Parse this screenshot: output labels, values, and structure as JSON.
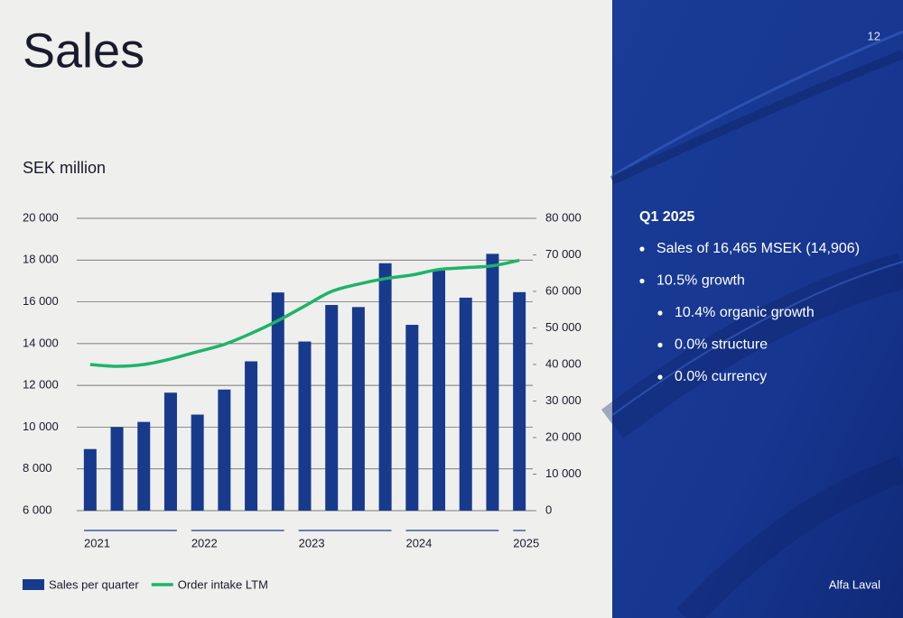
{
  "chart_data": {
    "type": "bar",
    "title": "Sales",
    "ylabel": "SEK million",
    "categories": [
      "2021",
      null,
      null,
      null,
      "2022",
      null,
      null,
      null,
      "2023",
      null,
      null,
      null,
      "2024",
      null,
      null,
      null,
      "2025"
    ],
    "series": [
      {
        "name": "Sales per quarter",
        "type": "bar",
        "color": "#173a8c",
        "values": [
          8950,
          10000,
          10250,
          11650,
          10600,
          11800,
          13150,
          16450,
          14100,
          15850,
          15750,
          17850,
          14900,
          17500,
          16200,
          18300,
          16465
        ]
      },
      {
        "name": "Order intake LTM",
        "type": "line",
        "axis": "y2",
        "color": "#1db46a",
        "values": [
          40000,
          39500,
          40000,
          41500,
          43500,
          45500,
          48500,
          52000,
          56000,
          60000,
          62000,
          63500,
          64500,
          66000,
          66500,
          67000,
          68500
        ]
      }
    ],
    "ylim": [
      6000,
      20000
    ],
    "yticks": [
      {
        "value": 6000,
        "label": "6 000"
      },
      {
        "value": 8000,
        "label": "8 000"
      },
      {
        "value": 10000,
        "label": "10 000"
      },
      {
        "value": 12000,
        "label": "12 000"
      },
      {
        "value": 14000,
        "label": "14 000"
      },
      {
        "value": 16000,
        "label": "16 000"
      },
      {
        "value": 18000,
        "label": "18 000"
      },
      {
        "value": 20000,
        "label": "20 000"
      }
    ],
    "y2lim": [
      0,
      80000
    ],
    "y2ticks": [
      0,
      {
        "value": 10000,
        "label": "10 000"
      },
      {
        "value": 20000,
        "label": "20 000"
      },
      {
        "value": 30000,
        "label": "30 000"
      },
      {
        "value": 40000,
        "label": "40 000"
      },
      {
        "value": 50000,
        "label": "50 000"
      },
      {
        "value": 60000,
        "label": "60 000"
      },
      {
        "value": 70000,
        "label": "70 000"
      },
      {
        "value": 80000,
        "label": "80 000"
      }
    ],
    "grid": true,
    "legend": "bottom-left"
  },
  "slide": {
    "page_number": "12",
    "heading": "Q1 2025",
    "bullets": [
      {
        "text": "Sales of 16,465 MSEK (14,906)",
        "level": 1
      },
      {
        "text": "10.5% growth",
        "level": 1
      },
      {
        "text": "10.4% organic growth",
        "level": 2
      },
      {
        "text": "0.0% structure",
        "level": 2
      },
      {
        "text": "0.0% currency",
        "level": 2
      }
    ],
    "brand": "Alfa Laval"
  }
}
